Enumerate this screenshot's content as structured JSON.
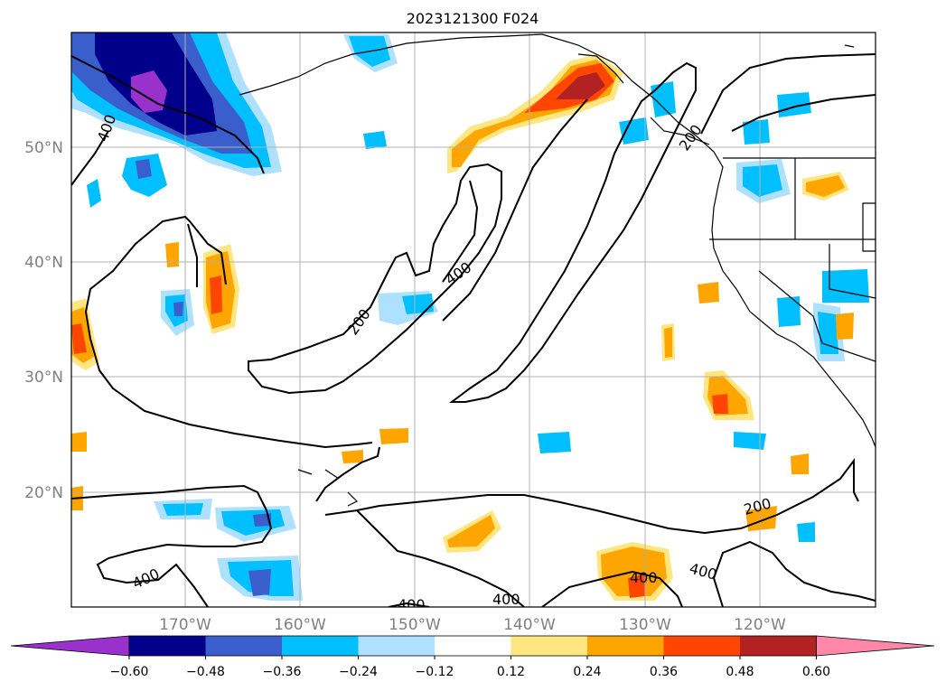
{
  "title": "2023121300 F024",
  "lon_ticks": [
    "170°W",
    "160°W",
    "150°W",
    "140°W",
    "130°W",
    "120°W"
  ],
  "lat_ticks": [
    "50°N",
    "40°N",
    "30°N",
    "20°N"
  ],
  "contour_labels": [
    "400",
    "200",
    "400",
    "200",
    "400",
    "400",
    "400",
    "200",
    "400",
    "400"
  ],
  "colorbar": {
    "ticks": [
      "−0.60",
      "−0.48",
      "−0.36",
      "−0.24",
      "−0.12",
      "0.12",
      "0.24",
      "0.36",
      "0.48",
      "0.60"
    ],
    "colors": [
      "#9932cc",
      "#00008b",
      "#3a5fcd",
      "#00bfff",
      "#aee0ff",
      "#ffffff",
      "#ffe680",
      "#ffa500",
      "#ff4500",
      "#b22222",
      "#ff88aa"
    ]
  },
  "chart_data": {
    "type": "heatmap",
    "title": "2023121300 F024",
    "map_region": "North-east Pacific Ocean / western North America",
    "lon_range": [
      "180°W",
      "110°W"
    ],
    "lat_range": [
      "10°N",
      "60°N"
    ],
    "grid": true,
    "contour_levels": [
      200,
      400
    ],
    "colorbar_levels": [
      -0.6,
      -0.48,
      -0.36,
      -0.24,
      -0.12,
      0.12,
      0.24,
      0.36,
      0.48,
      0.6
    ],
    "colorbar_extend": "both"
  }
}
